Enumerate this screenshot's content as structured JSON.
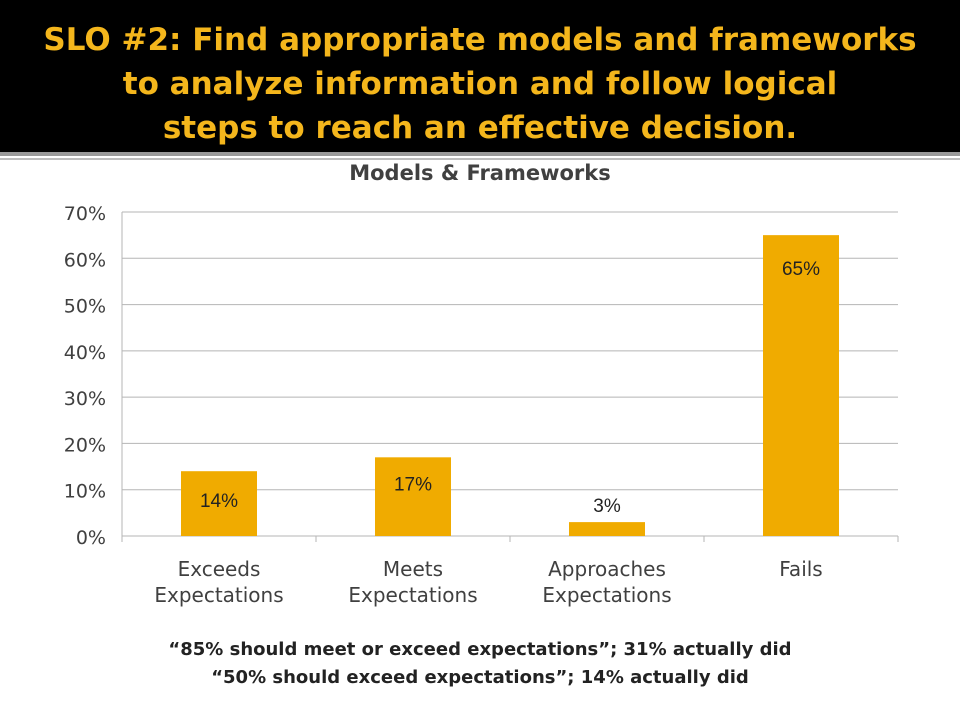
{
  "slide": {
    "title_lines": [
      "SLO #2: Find appropriate models and frameworks",
      "to analyze information and follow logical",
      "steps to reach an effective decision."
    ],
    "footnotes": [
      "“85% should meet or exceed expectations”; 31% actually did",
      "“50% should exceed expectations”; 14% actually did"
    ]
  },
  "colors": {
    "bar": "#f0ab00",
    "title": "#f4b61c",
    "band": "#000000"
  },
  "chart_data": {
    "type": "bar",
    "title": "Models & Frameworks",
    "categories": [
      [
        "Exceeds",
        "Expectations"
      ],
      [
        "Meets",
        "Expectations"
      ],
      [
        "Approaches",
        "Expectations"
      ],
      [
        "Fails"
      ]
    ],
    "values": [
      14,
      17,
      3,
      65
    ],
    "data_labels": [
      "14%",
      "17%",
      "3%",
      "65%"
    ],
    "ylim": [
      0,
      70
    ],
    "yticks": [
      0,
      10,
      20,
      30,
      40,
      50,
      60,
      70
    ],
    "ytick_labels": [
      "0%",
      "10%",
      "20%",
      "30%",
      "40%",
      "50%",
      "60%",
      "70%"
    ],
    "grid": true,
    "legend": "none"
  }
}
